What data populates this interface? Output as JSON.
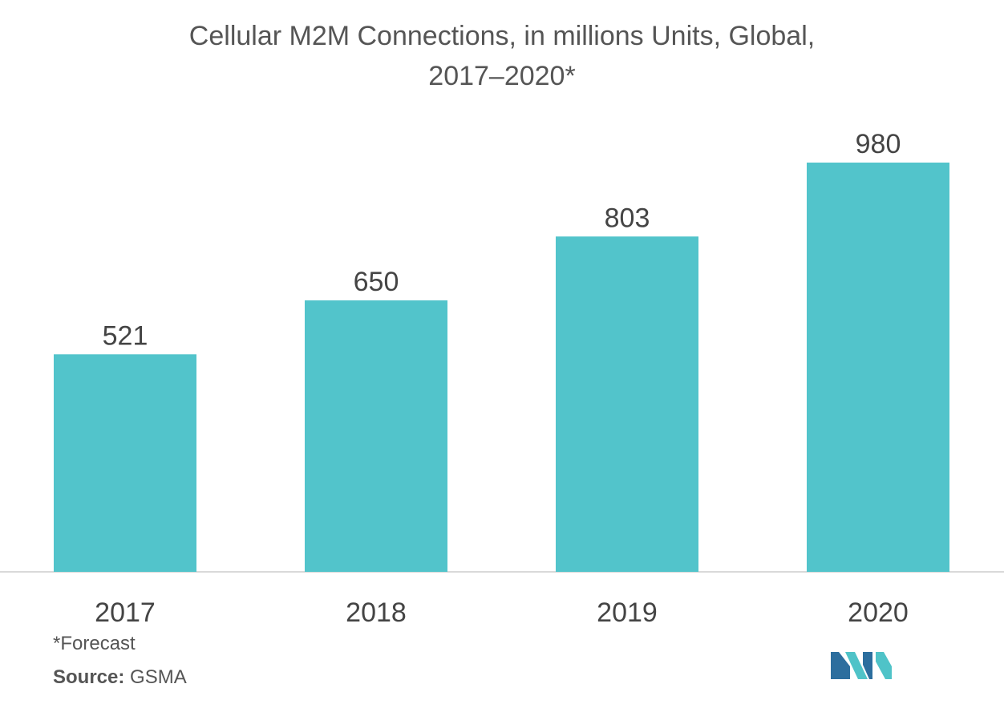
{
  "title": {
    "line1": "Cellular M2M Connections,  in millions Units, Global,",
    "line2": "2017–2020*"
  },
  "footnote": "*Forecast",
  "source": {
    "label": "Source:",
    "value": " GSMA"
  },
  "colors": {
    "bar": "#52C4CB",
    "axis": "#D9D9D9",
    "text": "#444444",
    "logo_dark": "#2C6E9E",
    "logo_light": "#4FC3C8"
  },
  "chart_data": {
    "type": "bar",
    "title": "Cellular M2M Connections,  in millions Units, Global, 2017–2020*",
    "categories": [
      "2017",
      "2018",
      "2019",
      "2020"
    ],
    "values": [
      521,
      650,
      803,
      980
    ],
    "data_labels": [
      "521",
      "650",
      "803",
      "980"
    ],
    "xlabel": "",
    "ylabel": "",
    "ylim": [
      0,
      1000
    ],
    "grid": false,
    "legend": "none"
  }
}
